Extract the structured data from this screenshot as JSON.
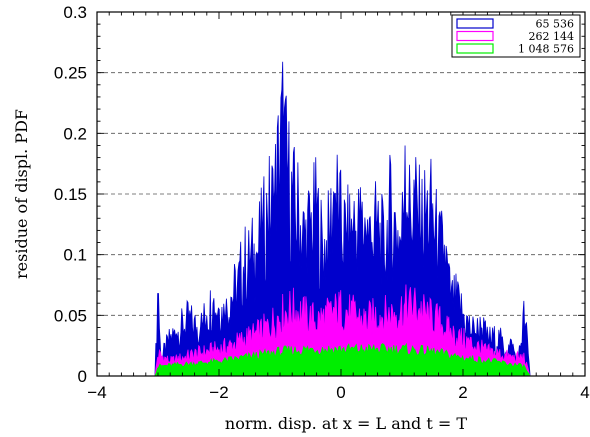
{
  "chart_data": {
    "type": "area",
    "title": "",
    "xlabel": "norm. disp. at x = L and t = T",
    "ylabel": "residue of displ. PDF",
    "xlim": [
      -4,
      4
    ],
    "ylim": [
      0,
      0.3
    ],
    "x_ticks": [
      "−4",
      "−2",
      "0",
      "2",
      "4"
    ],
    "y_ticks": [
      "0",
      "0.05",
      "0.1",
      "0.15",
      "0.2",
      "0.25",
      "0.3"
    ],
    "grid": "horizontal dashed",
    "legend_position": "top-right",
    "series": [
      {
        "name": "65 536",
        "color": "#0000cc",
        "x": [
          -3.05,
          -3.0,
          -2.95,
          -2.9,
          -2.8,
          -2.7,
          -2.6,
          -2.5,
          -2.4,
          -2.3,
          -2.2,
          -2.1,
          -2.0,
          -1.9,
          -1.8,
          -1.7,
          -1.6,
          -1.5,
          -1.4,
          -1.3,
          -1.2,
          -1.1,
          -1.0,
          -0.95,
          -0.9,
          -0.8,
          -0.7,
          -0.6,
          -0.5,
          -0.4,
          -0.3,
          -0.2,
          -0.1,
          0.0,
          0.1,
          0.2,
          0.3,
          0.4,
          0.5,
          0.6,
          0.7,
          0.8,
          0.9,
          1.0,
          1.05,
          1.1,
          1.2,
          1.3,
          1.4,
          1.5,
          1.6,
          1.7,
          1.8,
          1.9,
          2.0,
          2.1,
          2.2,
          2.3,
          2.4,
          2.5,
          2.6,
          2.7,
          2.8,
          2.9,
          3.0,
          3.05,
          3.1
        ],
        "values": [
          0.0,
          0.068,
          0.01,
          0.02,
          0.03,
          0.035,
          0.04,
          0.045,
          0.04,
          0.04,
          0.05,
          0.06,
          0.055,
          0.05,
          0.065,
          0.07,
          0.09,
          0.09,
          0.1,
          0.11,
          0.13,
          0.14,
          0.18,
          0.2,
          0.17,
          0.14,
          0.13,
          0.11,
          0.12,
          0.13,
          0.1,
          0.11,
          0.15,
          0.12,
          0.11,
          0.12,
          0.12,
          0.12,
          0.11,
          0.12,
          0.1,
          0.13,
          0.12,
          0.11,
          0.19,
          0.13,
          0.14,
          0.12,
          0.13,
          0.13,
          0.1,
          0.1,
          0.06,
          0.06,
          0.05,
          0.04,
          0.035,
          0.04,
          0.03,
          0.03,
          0.03,
          0.02,
          0.025,
          0.01,
          0.048,
          0.03,
          0.0
        ]
      },
      {
        "name": "262 144",
        "color": "#ff00ff",
        "x": [
          -3.05,
          -3.0,
          -2.8,
          -2.6,
          -2.4,
          -2.2,
          -2.0,
          -1.8,
          -1.6,
          -1.4,
          -1.2,
          -1.0,
          -0.8,
          -0.6,
          -0.4,
          -0.2,
          0.0,
          0.2,
          0.4,
          0.6,
          0.8,
          1.0,
          1.2,
          1.4,
          1.6,
          1.8,
          2.0,
          2.2,
          2.4,
          2.6,
          2.8,
          3.0,
          3.1
        ],
        "values": [
          0.0,
          0.018,
          0.012,
          0.015,
          0.018,
          0.02,
          0.022,
          0.025,
          0.03,
          0.034,
          0.04,
          0.05,
          0.055,
          0.05,
          0.045,
          0.05,
          0.055,
          0.05,
          0.045,
          0.05,
          0.05,
          0.055,
          0.058,
          0.05,
          0.045,
          0.035,
          0.03,
          0.025,
          0.02,
          0.018,
          0.015,
          0.015,
          0.0
        ]
      },
      {
        "name": "1 048 576",
        "color": "#00ee00",
        "x": [
          -3.05,
          -3.0,
          -2.5,
          -2.0,
          -1.5,
          -1.0,
          -0.5,
          0.0,
          0.5,
          1.0,
          1.5,
          2.0,
          2.5,
          3.0,
          3.1
        ],
        "values": [
          0.0,
          0.008,
          0.01,
          0.012,
          0.016,
          0.02,
          0.022,
          0.022,
          0.022,
          0.022,
          0.02,
          0.015,
          0.012,
          0.008,
          0.0
        ]
      }
    ]
  }
}
